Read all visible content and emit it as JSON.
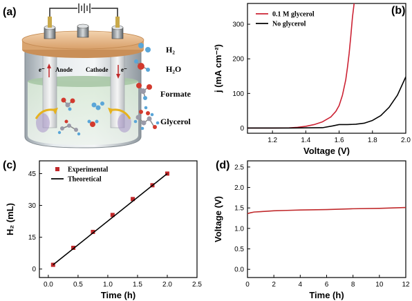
{
  "panels": {
    "a": {
      "label": "(a)",
      "anode_label": "Anode",
      "cathode_label": "Cathode",
      "electron_label": "e⁻",
      "molecules": [
        {
          "name": "H2",
          "text": "H₂",
          "icon": "hydrogen-molecule-icon"
        },
        {
          "name": "H2O",
          "text": "H₂O",
          "icon": "water-molecule-icon"
        },
        {
          "name": "Formate",
          "text": "Formate",
          "icon": "formate-molecule-icon"
        },
        {
          "name": "Glycerol",
          "text": "Glycerol",
          "icon": "glycerol-molecule-icon"
        }
      ],
      "colors": {
        "lid": "#e7b98a",
        "beaker": "#cfd6db",
        "electrolyte": "#cfe3cf",
        "hydrogen": "#5aa6d8",
        "oxygen": "#d23a2e",
        "carbon": "#9a9aa8"
      }
    }
  },
  "chart_data": [
    {
      "panel": "(b)",
      "type": "line",
      "xlabel": "Voltage (V)",
      "ylabel": "j (mA cm⁻²)",
      "xlim": [
        1.05,
        2.0
      ],
      "ylim": [
        -15,
        360
      ],
      "xticks": [
        1.2,
        1.4,
        1.6,
        1.8,
        2.0
      ],
      "xtick_labels": [
        "1.2",
        "1.4",
        "1.6",
        "1.8",
        "2.0"
      ],
      "yticks": [
        0,
        100,
        200,
        300
      ],
      "ytick_labels": [
        "0",
        "100",
        "200",
        "300"
      ],
      "grid": false,
      "legend": "top-left",
      "series": [
        {
          "name": "0.1 M glycerol",
          "color": "#cc2233",
          "x": [
            1.05,
            1.2,
            1.3,
            1.35,
            1.4,
            1.45,
            1.5,
            1.55,
            1.58,
            1.6,
            1.62,
            1.64,
            1.65,
            1.66,
            1.67,
            1.68,
            1.69
          ],
          "y": [
            0,
            0,
            0.5,
            2,
            5,
            10,
            18,
            32,
            48,
            65,
            95,
            140,
            175,
            215,
            265,
            320,
            360
          ]
        },
        {
          "name": "No glycerol",
          "color": "#000000",
          "x": [
            1.05,
            1.3,
            1.5,
            1.56,
            1.6,
            1.65,
            1.7,
            1.75,
            1.8,
            1.85,
            1.9,
            1.95,
            2.0
          ],
          "y": [
            0,
            0,
            1,
            6,
            10,
            10,
            11,
            14,
            22,
            36,
            60,
            95,
            148
          ]
        }
      ]
    },
    {
      "panel": "(c)",
      "type": "scatter",
      "xlabel": "Time (h)",
      "ylabel": "H₂ (mL)",
      "xlim": [
        -0.15,
        2.5
      ],
      "ylim": [
        -4,
        51
      ],
      "xticks": [
        0.0,
        0.5,
        1.0,
        1.5,
        2.0,
        2.5
      ],
      "xtick_labels": [
        "0.0",
        "0.5",
        "1.0",
        "1.5",
        "2.0",
        "2.5"
      ],
      "yticks": [
        0,
        15,
        30,
        45
      ],
      "ytick_labels": [
        "0",
        "15",
        "30",
        "45"
      ],
      "grid": false,
      "legend": "top-left",
      "series": [
        {
          "name": "Experimental",
          "kind": "marker",
          "color": "#c0282a",
          "x": [
            0.08,
            0.42,
            0.75,
            1.08,
            1.42,
            1.75,
            2.0
          ],
          "y": [
            2,
            10,
            17.5,
            25.5,
            33,
            39.5,
            45
          ]
        },
        {
          "name": "Theoretical",
          "kind": "line",
          "color": "#000000",
          "x": [
            0.08,
            2.0
          ],
          "y": [
            2,
            45
          ]
        }
      ]
    },
    {
      "panel": "(d)",
      "type": "line",
      "xlabel": "Time (h)",
      "ylabel": "Voltage (V)",
      "xlim": [
        0,
        12
      ],
      "ylim": [
        -0.2,
        2.65
      ],
      "xticks": [
        0,
        2,
        4,
        6,
        8,
        10,
        12
      ],
      "xtick_labels": [
        "0",
        "2",
        "4",
        "6",
        "8",
        "10",
        "12"
      ],
      "yticks": [
        0.0,
        0.5,
        1.0,
        1.5,
        2.0,
        2.5
      ],
      "ytick_labels": [
        "0.0",
        "0.5",
        "1.0",
        "1.5",
        "2.0",
        "2.5"
      ],
      "grid": false,
      "series": [
        {
          "name": "",
          "color": "#c0282a",
          "x": [
            0,
            0.2,
            0.5,
            1,
            2,
            3,
            4,
            6,
            8,
            10,
            12
          ],
          "y": [
            1.36,
            1.38,
            1.4,
            1.41,
            1.43,
            1.44,
            1.45,
            1.46,
            1.48,
            1.49,
            1.51
          ]
        }
      ]
    }
  ]
}
